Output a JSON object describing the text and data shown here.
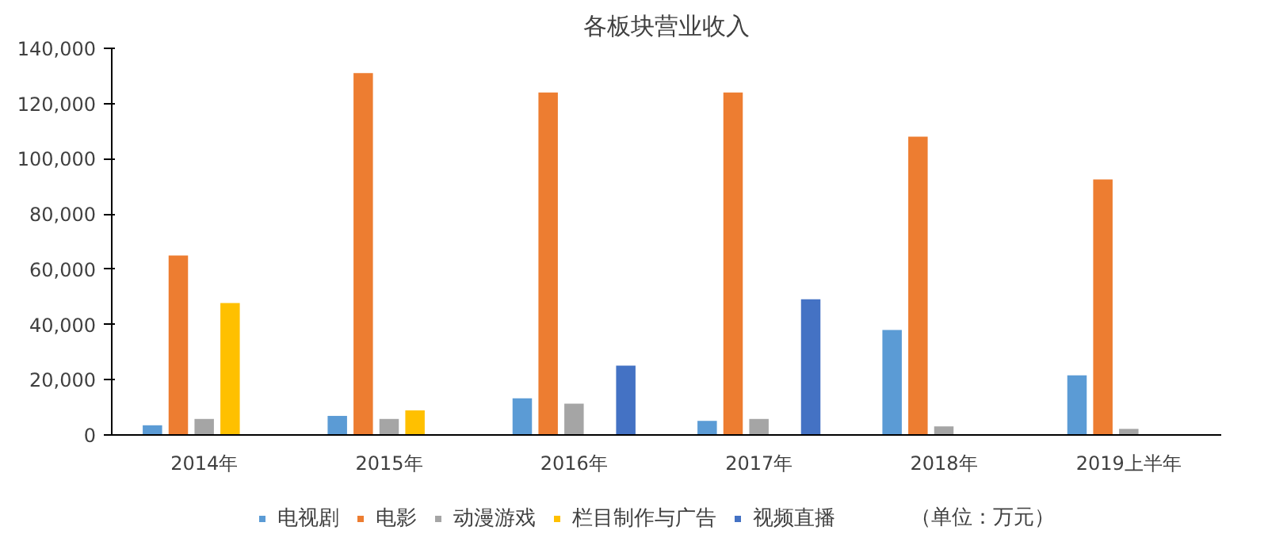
{
  "chart_data": {
    "type": "bar",
    "title": "各板块营业收入",
    "categories": [
      "2014年",
      "2015年",
      "2016年",
      "2017年",
      "2018年",
      "2019上半年"
    ],
    "series": [
      {
        "name": "电视剧",
        "color": "#5b9bd5",
        "values": [
          3500,
          6900,
          13300,
          5100,
          38000,
          21600
        ]
      },
      {
        "name": "电影",
        "color": "#ed7d31",
        "values": [
          65000,
          131000,
          124000,
          124000,
          108000,
          92500
        ]
      },
      {
        "name": "动漫游戏",
        "color": "#a5a5a5",
        "values": [
          5800,
          5800,
          11300,
          5800,
          3100,
          2200
        ]
      },
      {
        "name": "栏目制作与广告",
        "color": "#ffc000",
        "values": [
          47800,
          8900,
          null,
          null,
          null,
          null
        ]
      },
      {
        "name": "视频直播",
        "color": "#4472c4",
        "values": [
          null,
          null,
          25100,
          49100,
          null,
          null
        ]
      }
    ],
    "ylim": [
      0,
      140000
    ],
    "yticks": [
      {
        "value": 0,
        "label": "0"
      },
      {
        "value": 20000,
        "label": "20,000"
      },
      {
        "value": 40000,
        "label": "40,000"
      },
      {
        "value": 60000,
        "label": "60,000"
      },
      {
        "value": 80000,
        "label": "80,000"
      },
      {
        "value": 100000,
        "label": "100,000"
      },
      {
        "value": 120000,
        "label": "120,000"
      },
      {
        "value": 140000,
        "label": "140,000"
      }
    ],
    "grid": false,
    "legend": "bottom",
    "annotations": [
      "（单位：万元）"
    ]
  }
}
